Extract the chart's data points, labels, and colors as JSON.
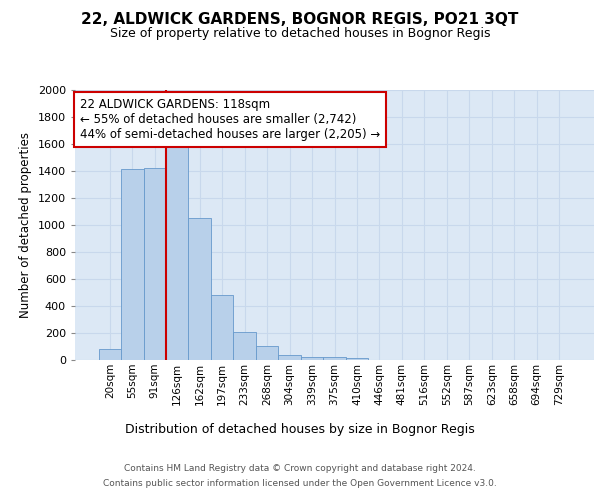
{
  "title": "22, ALDWICK GARDENS, BOGNOR REGIS, PO21 3QT",
  "subtitle": "Size of property relative to detached houses in Bognor Regis",
  "xlabel": "Distribution of detached houses by size in Bognor Regis",
  "ylabel": "Number of detached properties",
  "bin_labels": [
    "20sqm",
    "55sqm",
    "91sqm",
    "126sqm",
    "162sqm",
    "197sqm",
    "233sqm",
    "268sqm",
    "304sqm",
    "339sqm",
    "375sqm",
    "410sqm",
    "446sqm",
    "481sqm",
    "516sqm",
    "552sqm",
    "587sqm",
    "623sqm",
    "658sqm",
    "694sqm",
    "729sqm"
  ],
  "bar_heights": [
    80,
    1415,
    1420,
    1610,
    1050,
    480,
    205,
    105,
    40,
    25,
    20,
    15,
    0,
    0,
    0,
    0,
    0,
    0,
    0,
    0,
    0
  ],
  "bar_color": "#b8d0ea",
  "bar_edge_color": "#6699cc",
  "grid_color": "#c8d8ec",
  "background_color": "#dce8f5",
  "vline_color": "#cc0000",
  "annotation_text": "22 ALDWICK GARDENS: 118sqm\n← 55% of detached houses are smaller (2,742)\n44% of semi-detached houses are larger (2,205) →",
  "annotation_box_color": "white",
  "annotation_box_edge": "#cc0000",
  "ylim": [
    0,
    2000
  ],
  "yticks": [
    0,
    200,
    400,
    600,
    800,
    1000,
    1200,
    1400,
    1600,
    1800,
    2000
  ],
  "footer_line1": "Contains HM Land Registry data © Crown copyright and database right 2024.",
  "footer_line2": "Contains public sector information licensed under the Open Government Licence v3.0."
}
